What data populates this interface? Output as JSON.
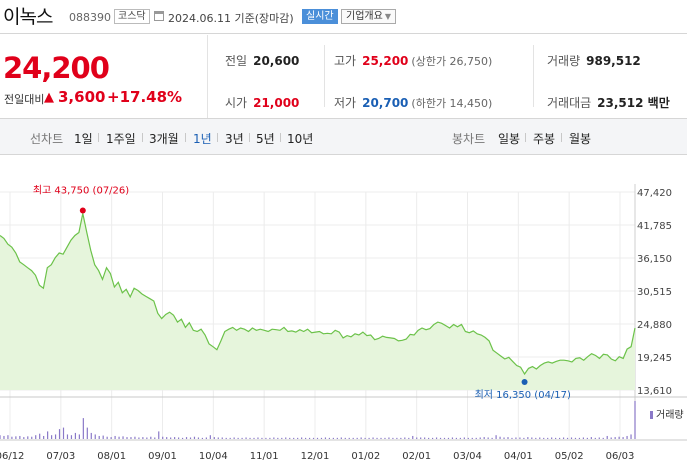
{
  "header": {
    "name": "이녹스",
    "code": "088390",
    "market_badge": "코스닥",
    "date_text": "2024.06.11 기준(장마감)",
    "realtime_button": "실시간",
    "overview_button": "기업개요"
  },
  "price": {
    "current": "24,200",
    "change_label": "전일대비",
    "change_direction": "up",
    "change_value": "3,600",
    "change_rate": "+17.48%"
  },
  "stats": {
    "prev_close_label": "전일",
    "prev_close": "20,600",
    "high_label": "고가",
    "high": "25,200",
    "upper_limit": "(상한가 26,750)",
    "volume_label": "거래량",
    "volume": "989,512",
    "open_label": "시가",
    "open": "21,000",
    "low_label": "저가",
    "low": "20,700",
    "lower_limit": "(하한가 14,450)",
    "amount_label": "거래대금",
    "amount": "23,512 백만"
  },
  "toolbar": {
    "line_chart_label": "선차트",
    "periods": [
      "1일",
      "1주일",
      "3개월",
      "1년",
      "3년",
      "5년",
      "10년"
    ],
    "selected_period": "1년",
    "candle_label": "봉차트",
    "candles": [
      "일봉",
      "주봉",
      "월봉"
    ]
  },
  "colors": {
    "up": "#e0001a",
    "down": "#1a5fb4",
    "line": "#6cc24a",
    "area": "#e6f5dc",
    "volume": "#8a79c8"
  },
  "chart_data": {
    "type": "area",
    "yaxis_ticks": [
      "47,420",
      "41,785",
      "36,150",
      "30,515",
      "24,880",
      "19,245",
      "13,610"
    ],
    "ylim": [
      13610,
      47420
    ],
    "x_tick_labels": [
      "06/12",
      "07/03",
      "08/01",
      "09/01",
      "10/04",
      "11/01",
      "12/01",
      "01/02",
      "02/01",
      "03/04",
      "04/01",
      "05/02",
      "06/03"
    ],
    "max_annotation": {
      "label": "최고 43,750 (07/26)",
      "value": 43750,
      "date": "07/26"
    },
    "min_annotation": {
      "label": "최저 16,350 (04/17)",
      "value": 16350,
      "date": "04/17"
    },
    "volume_legend": "거래량",
    "series": [
      {
        "values": [
          40000,
          39500,
          38500,
          38000,
          37000,
          35500,
          35000,
          34500,
          34000,
          33200,
          31500,
          31000,
          34500,
          35000,
          36200,
          37000,
          36800,
          38000,
          39200,
          40000,
          40500,
          43750,
          40500,
          37500,
          35000,
          34000,
          32500,
          34500,
          33500,
          31200,
          32000,
          30200,
          30800,
          29500,
          31000,
          30600,
          30000,
          29600,
          29200,
          28800,
          26700,
          25800,
          26500,
          26900,
          26400,
          25200,
          25700,
          24300,
          25100,
          23800,
          23600,
          24000,
          23000,
          21500,
          21000,
          20500,
          22000,
          23600,
          24000,
          24300,
          23800,
          24200,
          24000,
          23600,
          24200,
          23800,
          24000,
          23800,
          23600,
          24000,
          23900,
          23800,
          24300,
          23600,
          23700,
          23500,
          23900,
          23600,
          24000,
          23400,
          23500,
          23600,
          23200,
          23300,
          23200,
          23800,
          23500,
          22500,
          22900,
          22700,
          23200,
          23000,
          23500,
          22900,
          23000,
          22200,
          22400,
          22800,
          22600,
          22500,
          22400,
          22000,
          22100,
          22300,
          23100,
          23000,
          23800,
          24200,
          23900,
          24100,
          24800,
          25200,
          25000,
          24600,
          24200,
          24800,
          24400,
          24800,
          23600,
          23400,
          23700,
          23200,
          23000,
          22600,
          22000,
          20400,
          19900,
          19400,
          18900,
          19200,
          18500,
          17800,
          17500,
          16350,
          17300,
          17600,
          17200,
          17800,
          18200,
          18400,
          18200,
          18500,
          18700,
          18700,
          18600,
          18400,
          19000,
          19100,
          18700,
          19300,
          19800,
          19500,
          19000,
          19700,
          19600,
          18900,
          18600,
          19300,
          19000,
          20600,
          21000,
          24200
        ]
      }
    ],
    "volume": [
      0.1,
      0.08,
      0.1,
      0.06,
      0.07,
      0.08,
      0.05,
      0.07,
      0.06,
      0.1,
      0.14,
      0.08,
      0.2,
      0.1,
      0.12,
      0.26,
      0.3,
      0.12,
      0.1,
      0.16,
      0.12,
      0.55,
      0.3,
      0.16,
      0.12,
      0.08,
      0.09,
      0.06,
      0.05,
      0.08,
      0.06,
      0.07,
      0.05,
      0.05,
      0.06,
      0.04,
      0.05,
      0.04,
      0.06,
      0.04,
      0.2,
      0.06,
      0.05,
      0.04,
      0.05,
      0.04,
      0.03,
      0.05,
      0.04,
      0.06,
      0.04,
      0.03,
      0.04,
      0.1,
      0.05,
      0.04,
      0.04,
      0.03,
      0.03,
      0.04,
      0.03,
      0.03,
      0.04,
      0.03,
      0.03,
      0.04,
      0.03,
      0.03,
      0.03,
      0.04,
      0.03,
      0.03,
      0.04,
      0.03,
      0.03,
      0.03,
      0.04,
      0.03,
      0.03,
      0.03,
      0.03,
      0.03,
      0.04,
      0.03,
      0.03,
      0.03,
      0.04,
      0.03,
      0.03,
      0.03,
      0.03,
      0.04,
      0.03,
      0.03,
      0.04,
      0.03,
      0.03,
      0.03,
      0.04,
      0.03,
      0.03,
      0.03,
      0.04,
      0.03,
      0.08,
      0.04,
      0.04,
      0.04,
      0.03,
      0.03,
      0.04,
      0.03,
      0.03,
      0.03,
      0.04,
      0.03,
      0.03,
      0.04,
      0.03,
      0.03,
      0.03,
      0.04,
      0.05,
      0.04,
      0.03,
      0.1,
      0.06,
      0.04,
      0.05,
      0.03,
      0.04,
      0.04,
      0.03,
      0.05,
      0.04,
      0.03,
      0.04,
      0.03,
      0.03,
      0.04,
      0.03,
      0.03,
      0.04,
      0.03,
      0.04,
      0.03,
      0.03,
      0.04,
      0.03,
      0.05,
      0.03,
      0.04,
      0.03,
      0.08,
      0.04,
      0.05,
      0.06,
      0.05,
      0.08,
      0.12,
      1.0
    ]
  }
}
